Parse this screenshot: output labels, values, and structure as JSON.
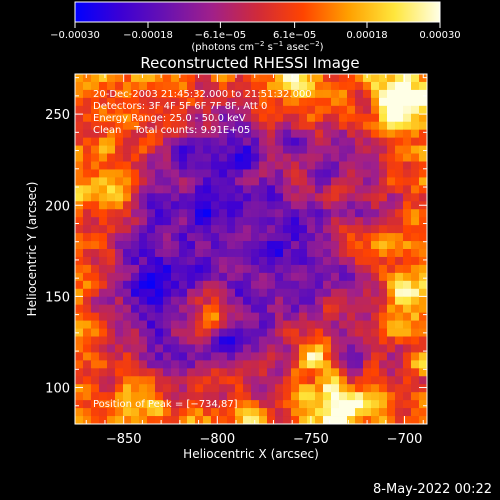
{
  "chart_data": {
    "type": "heatmap",
    "title": "Reconstructed RHESSI Image",
    "xlabel": "Heliocentric X (arcsec)",
    "ylabel": "Heliocentric Y (arcsec)",
    "xlim": [
      -876,
      -688
    ],
    "ylim": [
      80,
      272
    ],
    "x_ticks": [
      -850,
      -800,
      -750,
      -700
    ],
    "x_tick_labels": [
      "−850",
      "−800",
      "−750",
      "−700"
    ],
    "y_ticks": [
      100,
      150,
      200,
      250
    ],
    "y_tick_labels": [
      "100",
      "150",
      "200",
      "250"
    ],
    "colorbar": {
      "range": [
        -0.0003,
        0.0003
      ],
      "ticks": [
        -0.0003,
        -0.00018,
        -6.1e-05,
        6.1e-05,
        0.00018,
        0.0003
      ],
      "tick_labels": [
        "−0.00030",
        "−0.00018",
        "−6.1e−05",
        "6.1e−05",
        "0.00018",
        "0.00030"
      ],
      "unit_text": "(photons cm",
      "unit_sup1": "−2",
      "unit_mid": " s",
      "unit_sup2": "−1",
      "unit_mid2": " asec",
      "unit_sup3": "−2",
      "unit_end": ")",
      "colors": [
        "#0000ff",
        "#3c00d4",
        "#6a12b0",
        "#a0208a",
        "#d02a3a",
        "#ff4400",
        "#ffa000",
        "#ffe63c",
        "#ffffe6"
      ]
    },
    "annotations": [
      "20-Dec-2003 21:45:32.000 to 21:51:32.000",
      "Detectors: 3F 4F 5F 6F 7F 8F, Att 0",
      "Energy Range: 25.0 - 50.0 keV",
      "Clean    Total counts: 9.91E+05",
      "Position of Peak = [−734,87]"
    ],
    "peak": {
      "x": -734,
      "y": 87
    },
    "hot_spots": [
      {
        "x": -702,
        "y": 255,
        "weight": 1.0
      },
      {
        "x": -735,
        "y": 90,
        "weight": 1.0
      },
      {
        "x": -750,
        "y": 118,
        "weight": 0.7
      },
      {
        "x": -808,
        "y": 140,
        "weight": 0.6
      },
      {
        "x": -700,
        "y": 150,
        "weight": 0.6
      },
      {
        "x": -845,
        "y": 235,
        "weight": 0.5
      },
      {
        "x": -855,
        "y": 210,
        "weight": 0.4
      },
      {
        "x": -760,
        "y": 260,
        "weight": 0.45
      },
      {
        "x": -720,
        "y": 180,
        "weight": 0.5
      },
      {
        "x": -845,
        "y": 100,
        "weight": 0.4
      }
    ],
    "cold_spots": [
      {
        "x": -830,
        "y": 160,
        "weight": 0.8
      },
      {
        "x": -800,
        "y": 200,
        "weight": 0.6
      },
      {
        "x": -775,
        "y": 170,
        "weight": 0.6
      },
      {
        "x": -820,
        "y": 120,
        "weight": 0.5
      },
      {
        "x": -790,
        "y": 240,
        "weight": 0.5
      }
    ]
  },
  "footer": {
    "timestamp": "8-May-2022 00:22"
  }
}
